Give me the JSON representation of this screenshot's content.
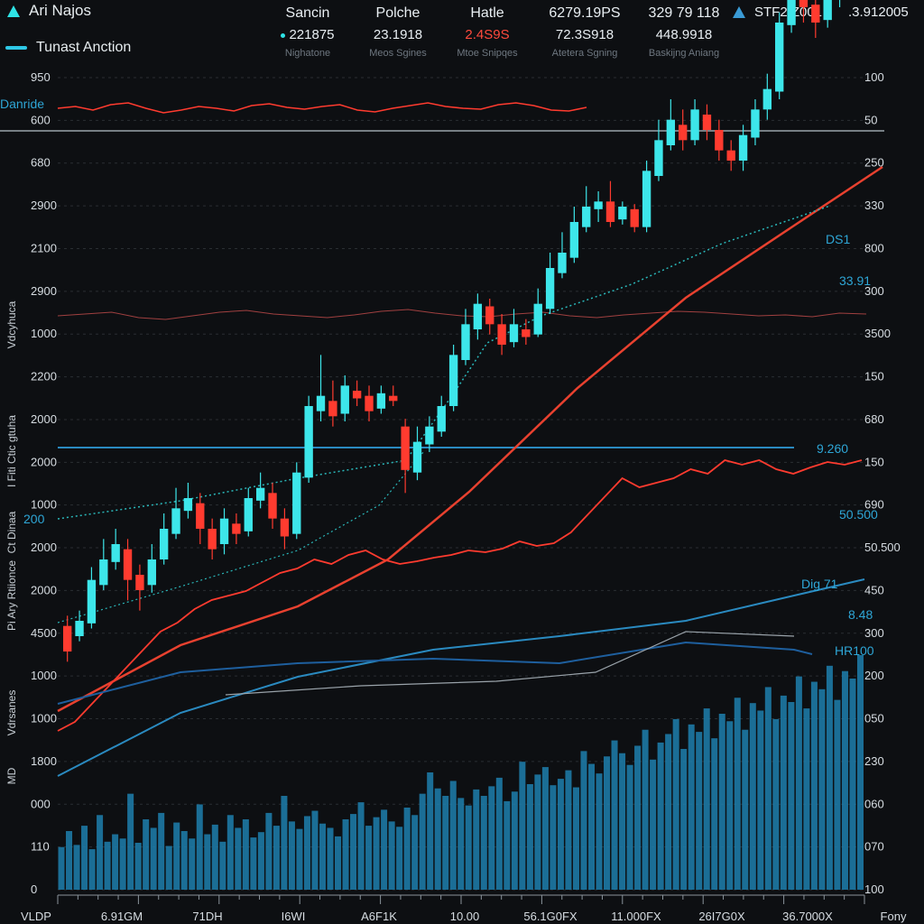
{
  "header": {
    "app_title": "Ari Najos",
    "subtitle": "Tunast Anction",
    "stats": [
      {
        "label": "Sancin",
        "value": "221875",
        "sub": "Nighatone",
        "value_color": "normal",
        "dot": true
      },
      {
        "label": "Polche",
        "value": "23.1918",
        "sub": "Meos Sgines",
        "value_color": "normal",
        "dot": false
      },
      {
        "label": "Hatle",
        "value": "2.4S9S",
        "sub": "Mtoe Snipqes",
        "value_color": "red",
        "dot": false
      },
      {
        "label": "6279.19PS",
        "value": "72.3S918",
        "sub": "Atetera Sgning",
        "value_color": "normal",
        "dot": false
      },
      {
        "label": "329 79 118",
        "value": "448.9918",
        "sub": "Baskijng Aniang",
        "value_color": "normal",
        "dot": false
      }
    ],
    "tickers": [
      {
        "symbol": "STF2.Z001",
        "icon": "triangle-up-icon"
      },
      {
        "symbol": ".3.912005",
        "icon": ""
      }
    ]
  },
  "colors": {
    "background": "#0d0f12",
    "bull": "#3de6ea",
    "bear": "#ff3b2f",
    "trend": "#e8412f",
    "volume": "#1f7fae",
    "ma_blue": "#2a8ac0",
    "grid": "#2a2e33"
  },
  "chart_data": {
    "type": "candlestick",
    "left_axis_labels": [
      "950",
      "600",
      "680",
      "2900",
      "2100",
      "2900",
      "1000",
      "2200",
      "2000",
      "2000",
      "1000",
      "2000",
      "2000",
      "4500",
      "1000",
      "1000",
      "1800",
      "000",
      "110",
      "0"
    ],
    "right_axis_labels": [
      "100",
      "50",
      "250",
      "330",
      "800",
      "300",
      "3500",
      "150",
      "680",
      "150",
      "690",
      "50.500",
      "450",
      "300",
      "200",
      "050",
      "230",
      "060",
      "070",
      "100"
    ],
    "x_axis_labels": [
      "VLDP",
      "6.91GM",
      "71DH",
      "I6WI",
      "A6F1K",
      "10.00",
      "56.1G0FX",
      "11.000FX",
      "26I7G0X",
      "36.7000X",
      "Fony"
    ],
    "side_labels": [
      "Vdcyhuca",
      "I Fiti Ctic gtuha",
      "Ct Dinaa",
      "Pi Ary Rtiionce",
      "Vdrsanes",
      "MD"
    ],
    "annotations": [
      {
        "text": "Danride",
        "pos": "top-left"
      },
      {
        "text": "200",
        "pos": "left"
      },
      {
        "text": "DS1",
        "pos": "right"
      },
      {
        "text": "9.260",
        "pos": "right"
      },
      {
        "text": "Dig 71",
        "pos": "right"
      },
      {
        "text": "HR100",
        "pos": "right"
      },
      {
        "text": "8.48",
        "pos": "right"
      },
      {
        "text": "33.91",
        "pos": "right"
      },
      {
        "text": "50.500",
        "pos": "right"
      }
    ],
    "candles": [
      {
        "o": 170,
        "c": 120,
        "h": 190,
        "l": 100
      },
      {
        "o": 150,
        "c": 180,
        "h": 200,
        "l": 140
      },
      {
        "o": 175,
        "c": 260,
        "h": 285,
        "l": 165
      },
      {
        "o": 250,
        "c": 300,
        "h": 340,
        "l": 240
      },
      {
        "o": 295,
        "c": 330,
        "h": 360,
        "l": 280
      },
      {
        "o": 320,
        "c": 260,
        "h": 340,
        "l": 220
      },
      {
        "o": 270,
        "c": 240,
        "h": 290,
        "l": 200
      },
      {
        "o": 250,
        "c": 300,
        "h": 330,
        "l": 235
      },
      {
        "o": 300,
        "c": 360,
        "h": 390,
        "l": 290
      },
      {
        "o": 350,
        "c": 400,
        "h": 440,
        "l": 340
      },
      {
        "o": 395,
        "c": 420,
        "h": 450,
        "l": 380
      },
      {
        "o": 410,
        "c": 360,
        "h": 430,
        "l": 330
      },
      {
        "o": 360,
        "c": 320,
        "h": 380,
        "l": 300
      },
      {
        "o": 330,
        "c": 380,
        "h": 400,
        "l": 310
      },
      {
        "o": 370,
        "c": 350,
        "h": 390,
        "l": 330
      },
      {
        "o": 355,
        "c": 420,
        "h": 440,
        "l": 345
      },
      {
        "o": 415,
        "c": 440,
        "h": 470,
        "l": 400
      },
      {
        "o": 430,
        "c": 380,
        "h": 450,
        "l": 360
      },
      {
        "o": 380,
        "c": 345,
        "h": 400,
        "l": 320
      },
      {
        "o": 350,
        "c": 470,
        "h": 490,
        "l": 340
      },
      {
        "o": 460,
        "c": 600,
        "h": 620,
        "l": 450
      },
      {
        "o": 590,
        "c": 620,
        "h": 700,
        "l": 570
      },
      {
        "o": 610,
        "c": 580,
        "h": 650,
        "l": 560
      },
      {
        "o": 585,
        "c": 640,
        "h": 660,
        "l": 570
      },
      {
        "o": 630,
        "c": 615,
        "h": 650,
        "l": 600
      },
      {
        "o": 620,
        "c": 590,
        "h": 640,
        "l": 570
      },
      {
        "o": 595,
        "c": 625,
        "h": 640,
        "l": 585
      },
      {
        "o": 620,
        "c": 610,
        "h": 640,
        "l": 600
      },
      {
        "o": 560,
        "c": 475,
        "h": 575,
        "l": 430
      },
      {
        "o": 470,
        "c": 530,
        "h": 560,
        "l": 455
      },
      {
        "o": 525,
        "c": 560,
        "h": 580,
        "l": 510
      },
      {
        "o": 550,
        "c": 600,
        "h": 620,
        "l": 540
      },
      {
        "o": 600,
        "c": 700,
        "h": 720,
        "l": 590
      },
      {
        "o": 690,
        "c": 760,
        "h": 790,
        "l": 680
      },
      {
        "o": 750,
        "c": 800,
        "h": 820,
        "l": 730
      },
      {
        "o": 795,
        "c": 760,
        "h": 810,
        "l": 740
      },
      {
        "o": 760,
        "c": 720,
        "h": 780,
        "l": 700
      },
      {
        "o": 725,
        "c": 760,
        "h": 790,
        "l": 715
      },
      {
        "o": 750,
        "c": 735,
        "h": 770,
        "l": 720
      },
      {
        "o": 740,
        "c": 800,
        "h": 830,
        "l": 735
      },
      {
        "o": 790,
        "c": 870,
        "h": 900,
        "l": 780
      },
      {
        "o": 860,
        "c": 900,
        "h": 940,
        "l": 850
      },
      {
        "o": 890,
        "c": 960,
        "h": 990,
        "l": 880
      },
      {
        "o": 950,
        "c": 990,
        "h": 1030,
        "l": 940
      },
      {
        "o": 985,
        "c": 1000,
        "h": 1020,
        "l": 960
      },
      {
        "o": 1000,
        "c": 960,
        "h": 1040,
        "l": 950
      },
      {
        "o": 965,
        "c": 990,
        "h": 1000,
        "l": 955
      },
      {
        "o": 985,
        "c": 950,
        "h": 995,
        "l": 940
      },
      {
        "o": 950,
        "c": 1060,
        "h": 1080,
        "l": 940
      },
      {
        "o": 1050,
        "c": 1120,
        "h": 1160,
        "l": 1040
      },
      {
        "o": 1110,
        "c": 1160,
        "h": 1200,
        "l": 1100
      },
      {
        "o": 1150,
        "c": 1120,
        "h": 1180,
        "l": 1100
      },
      {
        "o": 1120,
        "c": 1180,
        "h": 1200,
        "l": 1110
      },
      {
        "o": 1170,
        "c": 1140,
        "h": 1190,
        "l": 1120
      },
      {
        "o": 1140,
        "c": 1100,
        "h": 1160,
        "l": 1080
      },
      {
        "o": 1100,
        "c": 1080,
        "h": 1120,
        "l": 1060
      },
      {
        "o": 1080,
        "c": 1130,
        "h": 1150,
        "l": 1060
      },
      {
        "o": 1125,
        "c": 1180,
        "h": 1200,
        "l": 1110
      },
      {
        "o": 1180,
        "c": 1220,
        "h": 1250,
        "l": 1160
      },
      {
        "o": 1215,
        "c": 1350,
        "h": 1370,
        "l": 1200
      },
      {
        "o": 1345,
        "c": 1420,
        "h": 1460,
        "l": 1330
      },
      {
        "o": 1420,
        "c": 1380,
        "h": 1440,
        "l": 1350
      },
      {
        "o": 1385,
        "c": 1350,
        "h": 1400,
        "l": 1320
      },
      {
        "o": 1355,
        "c": 1400,
        "h": 1430,
        "l": 1340
      },
      {
        "o": 1395,
        "c": 1440,
        "h": 1470,
        "l": 1380
      },
      {
        "o": 1440,
        "c": 1420,
        "h": 1460,
        "l": 1400
      },
      {
        "o": 1425,
        "c": 1460,
        "h": 1470,
        "l": 1410
      }
    ],
    "upper_series_a": [
      60,
      62,
      58,
      64,
      66,
      60,
      55,
      58,
      62,
      60,
      57,
      63,
      65,
      61,
      59,
      62,
      64,
      58,
      56,
      60,
      63,
      66,
      62,
      60,
      59,
      64,
      66,
      63,
      58,
      57,
      61
    ],
    "upper_series_b": [
      40,
      42,
      44,
      38,
      36,
      40,
      44,
      46,
      42,
      40,
      38,
      41,
      45,
      47,
      43,
      40,
      39,
      42,
      44,
      40,
      38,
      41,
      43,
      45,
      44,
      42,
      40,
      41,
      39,
      43,
      42
    ],
    "lower_series": [
      60,
      70,
      90,
      110,
      130,
      150,
      170,
      180,
      195,
      205,
      210,
      215,
      225,
      235,
      240,
      250,
      245,
      255,
      260,
      250,
      245,
      248,
      252,
      255,
      260,
      258,
      262,
      270,
      265,
      268,
      280,
      300,
      320,
      340,
      330,
      335,
      340,
      350,
      345,
      360,
      355,
      360,
      350,
      345,
      352,
      358,
      355,
      360
    ],
    "volume": [
      40,
      55,
      42,
      60,
      38,
      70,
      45,
      52,
      48,
      90,
      44,
      66,
      58,
      72,
      41,
      63,
      55,
      48,
      80,
      52,
      61,
      45,
      70,
      58,
      66,
      49,
      54,
      72,
      60,
      88,
      64,
      57,
      69,
      74,
      62,
      58,
      50,
      66,
      71,
      82,
      60,
      68,
      75,
      64,
      59,
      77,
      70,
      90,
      110,
      95,
      88,
      102,
      86,
      79,
      94,
      88,
      97,
      105,
      83,
      92,
      120,
      99,
      108,
      115,
      98,
      104,
      112,
      96,
      130,
      118,
      109,
      125,
      140,
      128,
      117,
      135,
      150,
      122,
      138,
      146,
      160,
      132,
      155,
      148,
      170,
      142,
      165,
      158,
      180,
      150,
      175,
      168,
      190,
      160,
      182,
      176,
      200,
      170,
      195,
      188,
      210,
      178,
      205,
      198,
      220
    ]
  }
}
